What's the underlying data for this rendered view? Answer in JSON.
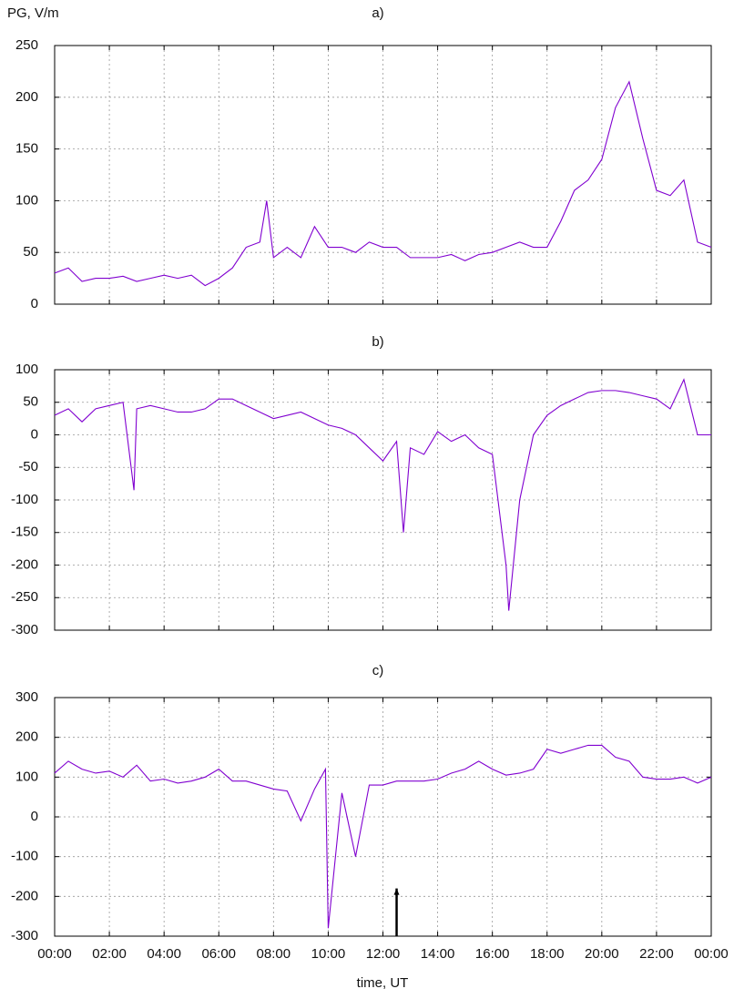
{
  "chart_data": [
    {
      "type": "line",
      "title": "a)",
      "ylabel": "PG, V/m",
      "color": "#8000d0",
      "grid": true,
      "xlim": [
        0,
        24
      ],
      "xticks": [
        0,
        2,
        4,
        6,
        8,
        10,
        12,
        14,
        16,
        18,
        20,
        22,
        24
      ],
      "ylim": [
        0,
        250
      ],
      "yticks": [
        0,
        50,
        100,
        150,
        200,
        250
      ],
      "x": [
        0,
        0.5,
        1,
        1.5,
        2,
        2.5,
        3,
        3.5,
        4,
        4.5,
        5,
        5.5,
        6,
        6.5,
        7,
        7.5,
        7.75,
        8,
        8.5,
        9,
        9.5,
        10,
        10.5,
        11,
        11.5,
        12,
        12.5,
        13,
        13.5,
        14,
        14.5,
        15,
        15.5,
        16,
        16.5,
        17,
        17.5,
        18,
        18.5,
        19,
        19.5,
        20,
        20.5,
        21,
        21.5,
        22,
        22.5,
        23,
        23.5,
        24
      ],
      "values": [
        30,
        35,
        22,
        25,
        25,
        27,
        22,
        25,
        28,
        25,
        28,
        18,
        25,
        35,
        55,
        60,
        100,
        45,
        55,
        45,
        75,
        55,
        55,
        50,
        60,
        55,
        55,
        45,
        45,
        45,
        48,
        42,
        48,
        50,
        55,
        60,
        55,
        55,
        80,
        110,
        120,
        140,
        190,
        215,
        160,
        110,
        105,
        120,
        60,
        55
      ]
    },
    {
      "type": "line",
      "title": "b)",
      "color": "#8000d0",
      "grid": true,
      "xlim": [
        0,
        24
      ],
      "xticks": [
        0,
        2,
        4,
        6,
        8,
        10,
        12,
        14,
        16,
        18,
        20,
        22,
        24
      ],
      "ylim": [
        -300,
        100
      ],
      "yticks": [
        -300,
        -250,
        -200,
        -150,
        -100,
        -50,
        0,
        50,
        100
      ],
      "x": [
        0,
        0.5,
        1,
        1.5,
        2,
        2.5,
        2.9,
        3,
        3.5,
        4,
        4.5,
        5,
        5.5,
        6,
        6.5,
        7,
        7.5,
        8,
        8.5,
        9,
        9.5,
        10,
        10.5,
        11,
        11.5,
        12,
        12.5,
        12.75,
        13,
        13.5,
        14,
        14.5,
        15,
        15.5,
        16,
        16.5,
        16.6,
        17,
        17.5,
        18,
        18.5,
        19,
        19.5,
        20,
        20.5,
        21,
        21.5,
        22,
        22.5,
        23,
        23.5,
        24
      ],
      "values": [
        30,
        40,
        20,
        40,
        45,
        50,
        -85,
        40,
        45,
        40,
        35,
        35,
        40,
        55,
        55,
        45,
        35,
        25,
        30,
        35,
        25,
        15,
        10,
        0,
        -20,
        -40,
        -10,
        -150,
        -20,
        -30,
        5,
        -10,
        0,
        -20,
        -30,
        -200,
        -270,
        -100,
        0,
        30,
        45,
        55,
        65,
        68,
        68,
        65,
        60,
        55,
        40,
        85,
        0,
        0
      ]
    },
    {
      "type": "line",
      "title": "c)",
      "xlabel": "time, UT",
      "color": "#8000d0",
      "grid": true,
      "xlim": [
        0,
        24
      ],
      "xticks": [
        {
          "value": 0,
          "label": "00:00"
        },
        {
          "value": 2,
          "label": "02:00"
        },
        {
          "value": 4,
          "label": "04:00"
        },
        {
          "value": 6,
          "label": "06:00"
        },
        {
          "value": 8,
          "label": "08:00"
        },
        {
          "value": 10,
          "label": "10:00"
        },
        {
          "value": 12,
          "label": "12:00"
        },
        {
          "value": 14,
          "label": "14:00"
        },
        {
          "value": 16,
          "label": "16:00"
        },
        {
          "value": 18,
          "label": "18:00"
        },
        {
          "value": 20,
          "label": "20:00"
        },
        {
          "value": 22,
          "label": "22:00"
        },
        {
          "value": 24,
          "label": "00:00"
        }
      ],
      "ylim": [
        -300,
        300
      ],
      "yticks": [
        -300,
        -200,
        -100,
        0,
        100,
        200,
        300
      ],
      "arrow": {
        "x": 12.5,
        "y": -180
      },
      "x": [
        0,
        0.5,
        1,
        1.5,
        2,
        2.5,
        3,
        3.5,
        4,
        4.5,
        5,
        5.5,
        6,
        6.5,
        7,
        7.5,
        8,
        8.5,
        9,
        9.5,
        9.9,
        10,
        10.5,
        11,
        11.5,
        12,
        12.5,
        13,
        13.5,
        14,
        14.5,
        15,
        15.5,
        16,
        16.5,
        17,
        17.5,
        18,
        18.5,
        19,
        19.5,
        20,
        20.5,
        21,
        21.5,
        22,
        22.5,
        23,
        23.5,
        24
      ],
      "values": [
        110,
        140,
        120,
        110,
        115,
        100,
        130,
        90,
        95,
        85,
        90,
        100,
        120,
        90,
        90,
        80,
        70,
        65,
        -10,
        70,
        120,
        -280,
        60,
        -100,
        80,
        80,
        90,
        90,
        90,
        95,
        110,
        120,
        140,
        120,
        105,
        110,
        120,
        170,
        160,
        170,
        180,
        180,
        150,
        140,
        100,
        95,
        95,
        100,
        85,
        100
      ]
    }
  ]
}
